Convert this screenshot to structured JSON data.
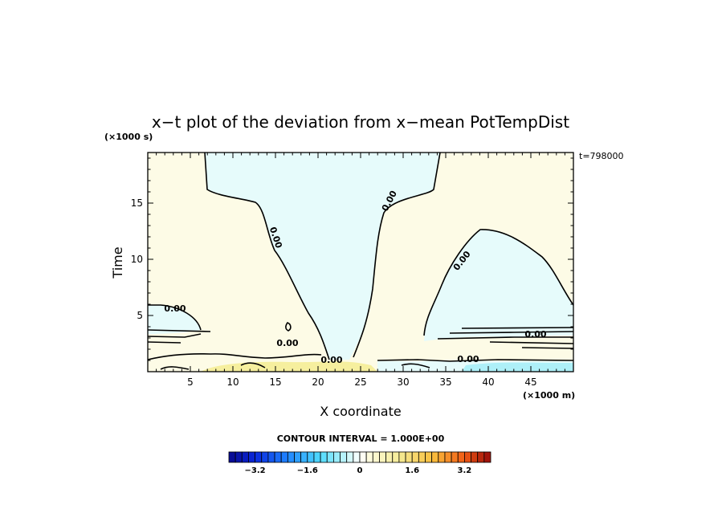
{
  "chart_data": {
    "type": "heatmap",
    "title": "x−t plot of the deviation from x−mean PotTempDist",
    "xlabel": "X coordinate",
    "ylabel": "Time",
    "x_unit": "(×1000 m)",
    "y_unit": "(×1000 s)",
    "time_stamp": "t=798000",
    "xlim": [
      0,
      50
    ],
    "ylim": [
      0,
      19.5
    ],
    "x_ticks": [
      5,
      10,
      15,
      20,
      25,
      30,
      35,
      40,
      45
    ],
    "y_ticks": [
      5,
      10,
      15
    ],
    "contour_interval_text": "CONTOUR INTERVAL = 1.000E+00",
    "contour_labels": [
      "0.00",
      "0.00",
      "0.00",
      "0.00",
      "0.00",
      "0.00",
      "0.00",
      "0.00"
    ],
    "colorbar": {
      "range": [
        -4,
        4
      ],
      "tick_labels": [
        "−3.2",
        "−1.6",
        "0",
        "1.6",
        "3.2"
      ],
      "tick_values": [
        -3.2,
        -1.6,
        0,
        1.6,
        3.2
      ]
    },
    "colors": {
      "positive_fill": "#fdfbe6",
      "negative_fill": "#e6fbfb",
      "warm_fill": "#f6ef9e",
      "cold_fill": "#aef0f8"
    }
  }
}
